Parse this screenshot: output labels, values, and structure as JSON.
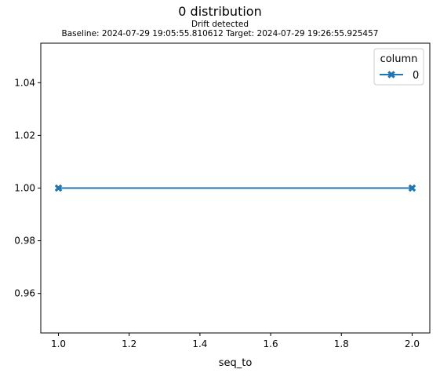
{
  "chart_data": {
    "type": "line",
    "title": "0 distribution",
    "subtitle_line1": "Drift detected",
    "subtitle_line2": "Baseline: 2024-07-29 19:05:55.810612 Target: 2024-07-29 19:26:55.925457",
    "xlabel": "seq_to",
    "ylabel": "",
    "xlim": [
      0.95,
      2.05
    ],
    "ylim": [
      0.945,
      1.055
    ],
    "x_ticks": [
      1.0,
      1.2,
      1.4,
      1.6,
      1.8,
      2.0
    ],
    "x_tick_labels": [
      "1.0",
      "1.2",
      "1.4",
      "1.6",
      "1.8",
      "2.0"
    ],
    "y_ticks": [
      0.96,
      0.98,
      1.0,
      1.02,
      1.04
    ],
    "y_tick_labels": [
      "0.96",
      "0.98",
      "1.00",
      "1.02",
      "1.04"
    ],
    "legend": {
      "title": "column",
      "placement": "top-right"
    },
    "series": [
      {
        "name": "0",
        "color": "#1f77b4",
        "marker": "X",
        "x": [
          1.0,
          2.0
        ],
        "values": [
          1.0,
          1.0
        ]
      }
    ],
    "grid": false
  }
}
